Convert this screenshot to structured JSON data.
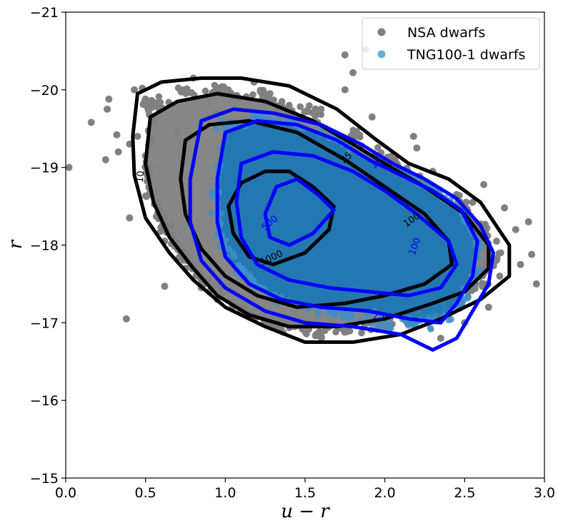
{
  "chart_data": {
    "type": "scatter",
    "title": "",
    "xlabel": "u − r",
    "ylabel": "r",
    "xlim": [
      0.0,
      3.0
    ],
    "ylim": [
      -15,
      -21
    ],
    "x_ticks": [
      0.0,
      0.5,
      1.0,
      1.5,
      2.0,
      2.5,
      3.0
    ],
    "x_tick_labels": [
      "0.0",
      "0.5",
      "1.0",
      "1.5",
      "2.0",
      "2.5",
      "3.0"
    ],
    "y_ticks": [
      -21,
      -20,
      -19,
      -18,
      -17,
      -16,
      -15
    ],
    "y_tick_labels": [
      "−21",
      "−20",
      "−19",
      "−18",
      "−17",
      "−16",
      "−15"
    ],
    "legend": {
      "position": "top-right",
      "entries": [
        {
          "label": "NSA dwarfs",
          "color": "#808080"
        },
        {
          "label": "TNG100-1 dwarfs",
          "color": "#6aaed6"
        }
      ]
    },
    "series": [
      {
        "name": "NSA dwarfs",
        "color": "#808080",
        "scatter_outliers": [
          [
            0.02,
            -19.0
          ],
          [
            0.16,
            -19.58
          ],
          [
            0.26,
            -19.75
          ],
          [
            0.27,
            -19.88
          ],
          [
            0.32,
            -19.42
          ],
          [
            0.33,
            -19.2
          ],
          [
            0.38,
            -17.05
          ],
          [
            0.4,
            -18.35
          ],
          [
            0.43,
            -20.0
          ],
          [
            0.48,
            -20.02
          ],
          [
            0.5,
            -19.88
          ],
          [
            0.45,
            -19.4
          ],
          [
            0.5,
            -19.15
          ],
          [
            0.55,
            -19.6
          ],
          [
            0.62,
            -17.47
          ],
          [
            0.62,
            -18.05
          ],
          [
            0.58,
            -18.55
          ],
          [
            0.8,
            -20.15
          ],
          [
            1.18,
            -20.1
          ],
          [
            1.28,
            -19.95
          ],
          [
            1.75,
            -20.45
          ],
          [
            1.8,
            -20.22
          ],
          [
            1.88,
            -20.52
          ],
          [
            1.75,
            -20.0
          ],
          [
            1.92,
            -19.65
          ],
          [
            2.18,
            -19.4
          ],
          [
            2.2,
            -19.25
          ],
          [
            2.3,
            -18.95
          ],
          [
            2.45,
            -18.65
          ],
          [
            2.62,
            -18.78
          ],
          [
            2.75,
            -18.48
          ],
          [
            2.82,
            -18.2
          ],
          [
            2.9,
            -18.3
          ],
          [
            2.92,
            -17.88
          ],
          [
            2.95,
            -17.5
          ],
          [
            2.85,
            -17.75
          ],
          [
            2.65,
            -17.2
          ],
          [
            2.35,
            -16.8
          ],
          [
            2.5,
            -17.0
          ],
          [
            0.25,
            -19.1
          ],
          [
            0.4,
            -19.3
          ],
          [
            0.7,
            -19.45
          ],
          [
            0.95,
            -19.7
          ],
          [
            1.05,
            -19.9
          ],
          [
            1.4,
            -19.8
          ],
          [
            1.6,
            -19.75
          ],
          [
            2.05,
            -19.1
          ],
          [
            2.55,
            -18.55
          ],
          [
            2.7,
            -18.05
          ],
          [
            2.72,
            -17.6
          ],
          [
            0.66,
            -18.25
          ],
          [
            0.75,
            -17.7
          ],
          [
            0.85,
            -17.45
          ],
          [
            0.95,
            -17.3
          ],
          [
            1.1,
            -17.15
          ],
          [
            1.35,
            -17.05
          ],
          [
            1.65,
            -16.95
          ],
          [
            2.0,
            -16.95
          ],
          [
            2.3,
            -17.05
          ],
          [
            2.45,
            -17.4
          ]
        ],
        "density_region": {
          "u_r_center": 1.6,
          "r_center": -18.4
        },
        "contours": [
          {
            "level": "10",
            "path": [
              [
                0.45,
                -19.95
              ],
              [
                0.6,
                -20.1
              ],
              [
                0.85,
                -20.15
              ],
              [
                1.1,
                -20.15
              ],
              [
                1.4,
                -20.05
              ],
              [
                1.7,
                -19.75
              ],
              [
                1.95,
                -19.35
              ],
              [
                2.15,
                -19.05
              ],
              [
                2.4,
                -18.85
              ],
              [
                2.6,
                -18.55
              ],
              [
                2.78,
                -18.0
              ],
              [
                2.78,
                -17.6
              ],
              [
                2.6,
                -17.3
              ],
              [
                2.35,
                -17.05
              ],
              [
                2.1,
                -16.85
              ],
              [
                1.8,
                -16.75
              ],
              [
                1.5,
                -16.75
              ],
              [
                1.25,
                -16.95
              ],
              [
                1.0,
                -17.2
              ],
              [
                0.8,
                -17.55
              ],
              [
                0.65,
                -17.9
              ],
              [
                0.5,
                -18.35
              ],
              [
                0.43,
                -18.9
              ],
              [
                0.42,
                -19.4
              ],
              [
                0.45,
                -19.95
              ]
            ]
          },
          {
            "level": "25",
            "path": [
              [
                0.53,
                -19.65
              ],
              [
                0.7,
                -19.85
              ],
              [
                0.95,
                -19.95
              ],
              [
                1.25,
                -19.85
              ],
              [
                1.55,
                -19.6
              ],
              [
                1.8,
                -19.3
              ],
              [
                2.0,
                -19.05
              ],
              [
                2.25,
                -18.75
              ],
              [
                2.5,
                -18.4
              ],
              [
                2.65,
                -18.0
              ],
              [
                2.65,
                -17.7
              ],
              [
                2.5,
                -17.4
              ],
              [
                2.3,
                -17.25
              ],
              [
                2.0,
                -17.05
              ],
              [
                1.7,
                -16.95
              ],
              [
                1.4,
                -16.95
              ],
              [
                1.15,
                -17.1
              ],
              [
                0.95,
                -17.35
              ],
              [
                0.8,
                -17.7
              ],
              [
                0.65,
                -18.1
              ],
              [
                0.55,
                -18.55
              ],
              [
                0.5,
                -19.05
              ],
              [
                0.53,
                -19.65
              ]
            ]
          },
          {
            "level": "100",
            "path": [
              [
                0.75,
                -19.35
              ],
              [
                0.9,
                -19.55
              ],
              [
                1.15,
                -19.6
              ],
              [
                1.45,
                -19.45
              ],
              [
                1.75,
                -19.1
              ],
              [
                2.0,
                -18.75
              ],
              [
                2.25,
                -18.4
              ],
              [
                2.4,
                -18.05
              ],
              [
                2.42,
                -17.75
              ],
              [
                2.25,
                -17.5
              ],
              [
                2.0,
                -17.35
              ],
              [
                1.75,
                -17.25
              ],
              [
                1.45,
                -17.2
              ],
              [
                1.2,
                -17.35
              ],
              [
                1.0,
                -17.6
              ],
              [
                0.85,
                -17.95
              ],
              [
                0.75,
                -18.4
              ],
              [
                0.72,
                -18.85
              ],
              [
                0.75,
                -19.35
              ]
            ]
          },
          {
            "level": "1000",
            "path": [
              [
                1.1,
                -18.8
              ],
              [
                1.25,
                -18.95
              ],
              [
                1.4,
                -18.95
              ],
              [
                1.55,
                -18.75
              ],
              [
                1.68,
                -18.5
              ],
              [
                1.65,
                -18.2
              ],
              [
                1.5,
                -17.9
              ],
              [
                1.3,
                -17.75
              ],
              [
                1.15,
                -17.85
              ],
              [
                1.05,
                -18.15
              ],
              [
                1.02,
                -18.5
              ],
              [
                1.1,
                -18.8
              ]
            ]
          }
        ]
      },
      {
        "name": "TNG100-1 dwarfs",
        "color": "#6aaed6",
        "density_region": {
          "u_r_center": 1.8,
          "r_center": -18.3
        },
        "contours": [
          {
            "level": "10",
            "path": [
              [
                0.85,
                -19.6
              ],
              [
                1.05,
                -19.75
              ],
              [
                1.3,
                -19.7
              ],
              [
                1.6,
                -19.55
              ],
              [
                1.85,
                -19.3
              ],
              [
                2.05,
                -19.05
              ],
              [
                2.25,
                -18.85
              ],
              [
                2.45,
                -18.6
              ],
              [
                2.6,
                -18.25
              ],
              [
                2.68,
                -17.9
              ],
              [
                2.65,
                -17.5
              ],
              [
                2.55,
                -17.15
              ],
              [
                2.45,
                -16.8
              ],
              [
                2.3,
                -16.65
              ],
              [
                2.1,
                -16.85
              ],
              [
                1.8,
                -16.95
              ],
              [
                1.5,
                -17.0
              ],
              [
                1.25,
                -17.15
              ],
              [
                1.0,
                -17.45
              ],
              [
                0.85,
                -17.8
              ],
              [
                0.78,
                -18.3
              ],
              [
                0.78,
                -18.85
              ],
              [
                0.85,
                -19.6
              ]
            ]
          },
          {
            "level": "25",
            "path": [
              [
                1.0,
                -19.45
              ],
              [
                1.2,
                -19.6
              ],
              [
                1.45,
                -19.55
              ],
              [
                1.7,
                -19.35
              ],
              [
                1.9,
                -19.1
              ],
              [
                2.1,
                -18.9
              ],
              [
                2.3,
                -18.7
              ],
              [
                2.48,
                -18.45
              ],
              [
                2.58,
                -18.05
              ],
              [
                2.55,
                -17.6
              ],
              [
                2.45,
                -17.25
              ],
              [
                2.35,
                -17.0
              ],
              [
                2.15,
                -17.05
              ],
              [
                1.9,
                -17.15
              ],
              [
                1.6,
                -17.2
              ],
              [
                1.35,
                -17.3
              ],
              [
                1.15,
                -17.5
              ],
              [
                1.0,
                -17.85
              ],
              [
                0.95,
                -18.3
              ],
              [
                0.95,
                -18.85
              ],
              [
                1.0,
                -19.45
              ]
            ]
          },
          {
            "level": "100",
            "path": [
              [
                1.1,
                -19.05
              ],
              [
                1.3,
                -19.2
              ],
              [
                1.55,
                -19.15
              ],
              [
                1.8,
                -18.95
              ],
              [
                2.0,
                -18.7
              ],
              [
                2.2,
                -18.4
              ],
              [
                2.4,
                -18.05
              ],
              [
                2.45,
                -17.75
              ],
              [
                2.35,
                -17.45
              ],
              [
                2.15,
                -17.35
              ],
              [
                1.9,
                -17.4
              ],
              [
                1.65,
                -17.45
              ],
              [
                1.4,
                -17.55
              ],
              [
                1.2,
                -17.75
              ],
              [
                1.1,
                -18.1
              ],
              [
                1.07,
                -18.55
              ],
              [
                1.1,
                -19.05
              ]
            ]
          },
          {
            "level": "500",
            "path": [
              [
                1.25,
                -18.4
              ],
              [
                1.32,
                -18.75
              ],
              [
                1.45,
                -18.85
              ],
              [
                1.58,
                -18.65
              ],
              [
                1.68,
                -18.45
              ],
              [
                1.55,
                -18.15
              ],
              [
                1.4,
                -18.0
              ],
              [
                1.28,
                -18.1
              ],
              [
                1.25,
                -18.4
              ]
            ]
          }
        ]
      }
    ],
    "contour_labels": [
      {
        "text": "10",
        "x": 0.47,
        "y": -18.88,
        "color": "#000000",
        "rotate": -85
      },
      {
        "text": "25",
        "x": 1.76,
        "y": -19.12,
        "color": "#000000",
        "rotate": -40
      },
      {
        "text": "100",
        "x": 2.17,
        "y": -18.32,
        "color": "#000000",
        "rotate": -35
      },
      {
        "text": "1000",
        "x": 1.29,
        "y": -17.83,
        "color": "#000000",
        "rotate": -25
      },
      {
        "text": "10",
        "x": 1.95,
        "y": -19.05,
        "color": "#0000ff",
        "rotate": -35
      },
      {
        "text": "25",
        "x": 1.96,
        "y": -17.08,
        "color": "#0000ff",
        "rotate": 0
      },
      {
        "text": "100",
        "x": 2.19,
        "y": -17.98,
        "color": "#0000ff",
        "rotate": -70
      },
      {
        "text": "500",
        "x": 1.28,
        "y": -18.28,
        "color": "#0000ff",
        "rotate": -40
      }
    ]
  }
}
